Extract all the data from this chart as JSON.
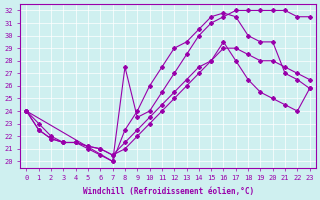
{
  "xlabel": "Windchill (Refroidissement éolien,°C)",
  "background_color": "#cff0f0",
  "line_color": "#9900aa",
  "xlim": [
    -0.5,
    23.5
  ],
  "ylim": [
    19.5,
    32.5
  ],
  "yticks": [
    20,
    21,
    22,
    23,
    24,
    25,
    26,
    27,
    28,
    29,
    30,
    31,
    32
  ],
  "xticks": [
    0,
    1,
    2,
    3,
    4,
    5,
    6,
    7,
    8,
    9,
    10,
    11,
    12,
    13,
    14,
    15,
    16,
    17,
    18,
    19,
    20,
    21,
    22,
    23
  ],
  "line1_x": [
    0,
    1,
    2,
    3,
    4,
    5,
    6,
    7,
    8,
    9,
    10,
    11,
    12,
    13,
    14,
    15,
    16,
    17,
    18,
    19,
    20,
    21,
    22,
    23
  ],
  "line1_y": [
    24.0,
    23.0,
    22.0,
    21.5,
    21.5,
    21.0,
    20.5,
    20.0,
    22.5,
    24.0,
    26.0,
    27.5,
    29.0,
    29.5,
    30.5,
    31.5,
    31.8,
    31.5,
    30.0,
    29.5,
    29.5,
    27.0,
    26.5,
    25.8
  ],
  "line2_x": [
    0,
    1,
    2,
    3,
    4,
    5,
    6,
    7,
    8,
    9,
    10,
    11,
    12,
    13,
    14,
    15,
    16,
    17,
    18,
    19,
    20,
    21,
    22,
    23
  ],
  "line2_y": [
    24.0,
    22.5,
    21.8,
    21.5,
    21.5,
    21.2,
    21.0,
    20.5,
    21.0,
    22.0,
    23.0,
    24.0,
    25.0,
    26.0,
    27.0,
    28.0,
    29.0,
    29.0,
    28.5,
    28.0,
    28.0,
    27.5,
    27.0,
    26.5
  ],
  "line3_x": [
    0,
    1,
    2,
    3,
    4,
    5,
    6,
    7,
    8,
    9,
    10,
    11,
    12,
    13,
    14,
    15,
    16,
    17,
    18,
    19,
    20,
    21,
    22,
    23
  ],
  "line3_y": [
    24.0,
    22.5,
    21.8,
    21.5,
    21.5,
    21.2,
    21.0,
    20.5,
    21.5,
    22.5,
    23.5,
    24.5,
    25.5,
    26.5,
    27.5,
    28.0,
    29.5,
    28.0,
    26.5,
    25.5,
    25.0,
    24.5,
    24.0,
    25.8
  ],
  "line4_x": [
    0,
    7,
    8,
    9,
    10,
    11,
    12,
    13,
    14,
    15,
    16,
    17,
    18,
    19,
    20,
    21,
    22,
    23
  ],
  "line4_y": [
    24.0,
    20.0,
    27.5,
    23.5,
    24.0,
    25.5,
    27.0,
    28.5,
    30.0,
    31.0,
    31.5,
    32.0,
    32.0,
    32.0,
    32.0,
    32.0,
    31.5,
    31.5
  ]
}
